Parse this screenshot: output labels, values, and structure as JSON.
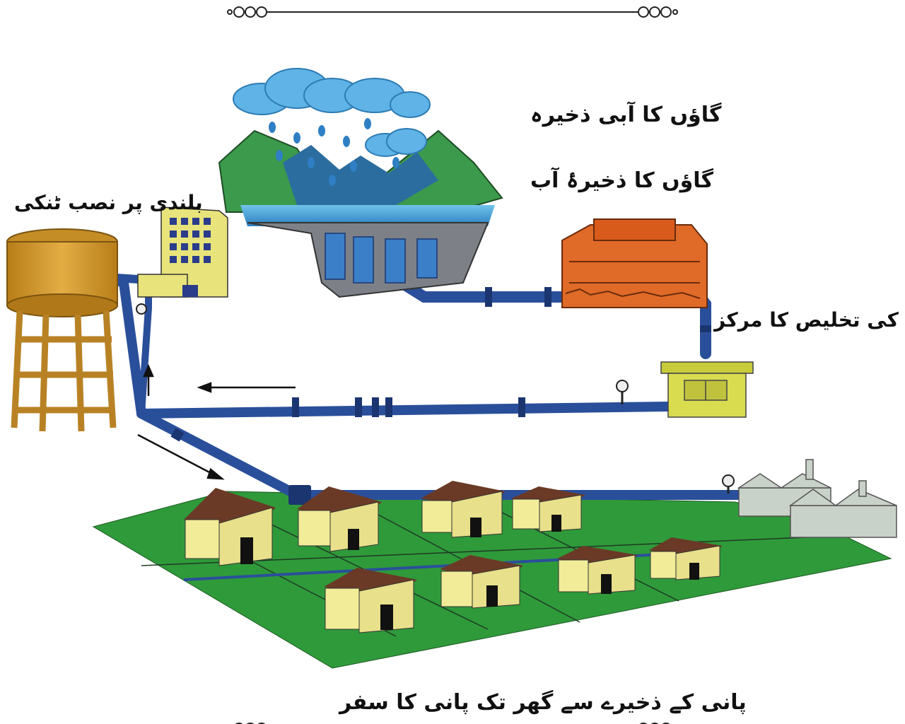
{
  "labels": {
    "village_water_reserve": "گاؤں کا آبی ذخیرہ",
    "village_water_reserve_alt": "گاؤں کا ذخیرۂ آب",
    "elevated_tank": "بلندی پر نصب ٹنکی",
    "treatment_center": "پانی کی تخلیص کا مرکز",
    "caption": "پانی کے ذخیرے سے گھر تک پانی کا سفر"
  },
  "colors": {
    "pipe": "#2a4f9a",
    "pipe_dark": "#1b3570",
    "mountain": "#3c9a4c",
    "grass": "#2f9a3a",
    "cloud": "#5fb3e6",
    "rain": "#2e7fc4",
    "tank": "#d49a2c",
    "treatment_building": "#e06a28",
    "pump_house": "#d9dc4f",
    "house_wall": "#f2ec99",
    "house_roof": "#6a3a26",
    "factory": "#c9d2c8"
  },
  "icons": [
    "ornament-divider",
    "cloud-icon",
    "rain-drop-icon",
    "meter-icon",
    "flow-arrow-icon"
  ]
}
